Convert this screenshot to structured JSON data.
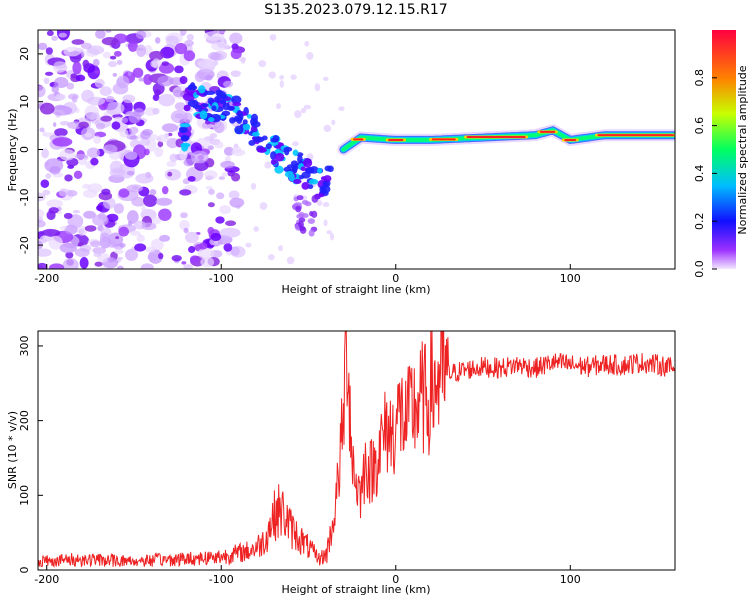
{
  "figure": {
    "title": "S135.2023.079.12.15.R17"
  },
  "chart_data": [
    {
      "type": "heatmap",
      "title": "S135.2023.079.12.15.R17",
      "xlabel": "Height of straight line (km)",
      "ylabel": "Frequency (Hz)",
      "xlim": [
        -205,
        160
      ],
      "ylim": [
        -25,
        25
      ],
      "xticks": [
        -200,
        -100,
        0,
        100
      ],
      "yticks": [
        -20,
        -10,
        0,
        10,
        20
      ],
      "colorbar": {
        "label": "Normalized spectral amplitude",
        "range": [
          0,
          1
        ],
        "ticks": [
          0.0,
          0.2,
          0.4,
          0.6,
          0.8
        ],
        "colors": [
          "#f3e6ff",
          "#7a00ff",
          "#0000ff",
          "#00bfff",
          "#00ff60",
          "#e0ff00",
          "#ff6a00",
          "#ff0030"
        ]
      },
      "ridge": {
        "x": [
          -120,
          -105,
          -95,
          -85,
          -75,
          -65,
          -55,
          -45,
          -40,
          -30,
          -20,
          0,
          20,
          50,
          80,
          90,
          100,
          120,
          160
        ],
        "freq": [
          11,
          9,
          9,
          5,
          2,
          -2,
          -4,
          -7,
          -7,
          0,
          2.5,
          2,
          2,
          2.5,
          3,
          4,
          2,
          3,
          3
        ]
      }
    },
    {
      "type": "line",
      "xlabel": "Height of straight line (km)",
      "ylabel": "SNR (10 * v/v)",
      "xlim": [
        -205,
        160
      ],
      "ylim": [
        0,
        320
      ],
      "xticks": [
        -200,
        -100,
        0,
        100
      ],
      "yticks": [
        0,
        100,
        200,
        300
      ],
      "series": [
        {
          "name": "SNR",
          "color": "#ee2222",
          "x": [
            -205,
            -180,
            -150,
            -120,
            -100,
            -85,
            -80,
            -75,
            -72,
            -68,
            -64,
            -60,
            -56,
            -52,
            -48,
            -44,
            -40,
            -36,
            -33,
            -30,
            -28,
            -25,
            -23,
            -20,
            -17,
            -15,
            -12,
            -10,
            -7,
            -5,
            -2,
            0,
            3,
            6,
            9,
            12,
            15,
            18,
            20,
            23,
            25,
            28,
            30,
            35,
            40,
            45,
            50,
            60,
            70,
            80,
            90,
            100,
            110,
            120,
            130,
            140,
            150,
            160
          ],
          "y": [
            12,
            14,
            12,
            15,
            18,
            25,
            30,
            40,
            60,
            80,
            75,
            55,
            45,
            35,
            25,
            15,
            20,
            60,
            120,
            200,
            320,
            150,
            120,
            100,
            150,
            130,
            140,
            160,
            175,
            190,
            180,
            200,
            210,
            195,
            215,
            220,
            230,
            225,
            240,
            250,
            258,
            260,
            262,
            265,
            268,
            270,
            272,
            270,
            275,
            270,
            278,
            275,
            272,
            276,
            274,
            278,
            275,
            270
          ]
        }
      ]
    }
  ]
}
